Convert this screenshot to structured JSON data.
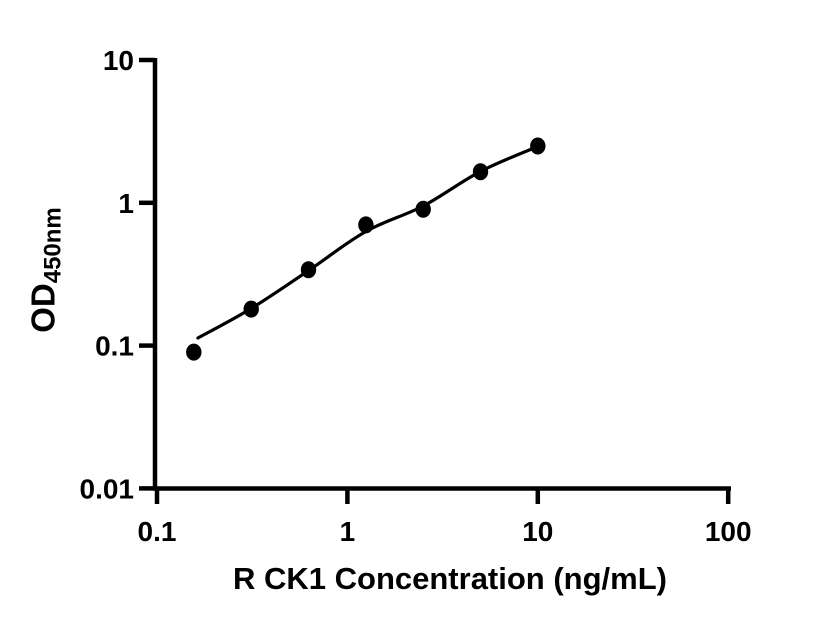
{
  "figure": {
    "background": "#ffffff",
    "axis_color": "#000000"
  },
  "chart_data": {
    "type": "scatter",
    "title": "",
    "xlabel": "R CK1 Concentration (ng/mL)",
    "ylabel_main": "OD",
    "ylabel_sub": "450nm",
    "x_scale": "log",
    "y_scale": "log",
    "xlim": [
      0.1,
      100
    ],
    "ylim": [
      0.01,
      10
    ],
    "grid": false,
    "legend": null,
    "x_ticks": [
      {
        "value": 0.1,
        "label": "0.1"
      },
      {
        "value": 1,
        "label": "1"
      },
      {
        "value": 10,
        "label": "10"
      },
      {
        "value": 100,
        "label": "100"
      }
    ],
    "y_ticks": [
      {
        "value": 10,
        "label": "10"
      },
      {
        "value": 1,
        "label": "1"
      },
      {
        "value": 0.1,
        "label": "0.1"
      },
      {
        "value": 0.01,
        "label": "0.01"
      }
    ],
    "points": [
      {
        "x": 0.156,
        "y": 0.09
      },
      {
        "x": 0.3125,
        "y": 0.18
      },
      {
        "x": 0.625,
        "y": 0.34
      },
      {
        "x": 1.25,
        "y": 0.7
      },
      {
        "x": 2.5,
        "y": 0.9
      },
      {
        "x": 5,
        "y": 1.65
      },
      {
        "x": 10,
        "y": 2.5
      }
    ],
    "fitted_curve_samples": [
      [
        0.164,
        0.113
      ],
      [
        0.3125,
        0.182
      ],
      [
        0.625,
        0.335
      ],
      [
        1.25,
        0.63
      ],
      [
        2.5,
        0.95
      ],
      [
        5,
        1.66
      ],
      [
        10,
        2.48
      ]
    ],
    "point_color": "#000000",
    "line_color": "#000000"
  }
}
